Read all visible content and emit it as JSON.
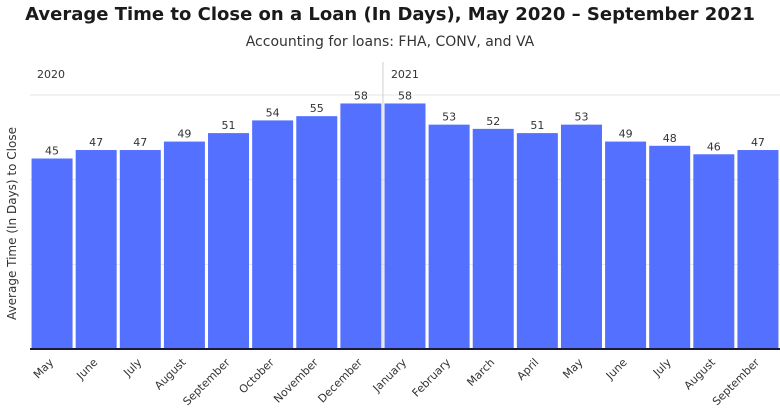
{
  "chart_data": {
    "type": "bar",
    "title": "Average Time to Close on a Loan (In Days), May 2020 – September 2021",
    "subtitle": "Accounting for loans: FHA, CONV, and VA",
    "ylabel": "Average Time (In Days) to Close",
    "xlabel": "",
    "ylim": [
      0,
      60
    ],
    "grid": true,
    "groups": [
      {
        "label": "2020",
        "start": 0,
        "end": 7
      },
      {
        "label": "2021",
        "start": 8,
        "end": 16
      }
    ],
    "categories": [
      "May",
      "June",
      "July",
      "August",
      "September",
      "October",
      "November",
      "December",
      "January",
      "February",
      "March",
      "April",
      "May",
      "June",
      "July",
      "August",
      "September"
    ],
    "values": [
      45,
      47,
      47,
      49,
      51,
      54,
      55,
      58,
      58,
      53,
      52,
      51,
      53,
      49,
      48,
      46,
      47
    ],
    "color": "#5470ff"
  }
}
